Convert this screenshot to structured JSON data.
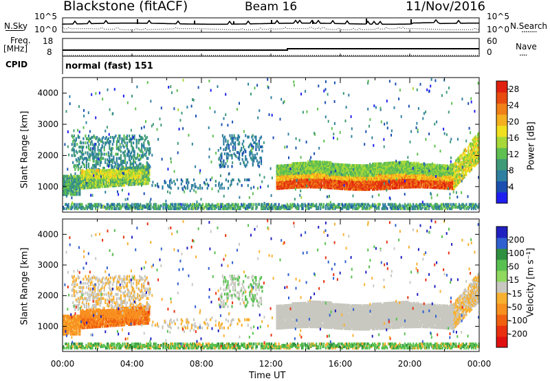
{
  "header": {
    "title": "Blackstone (fitACF)",
    "beam": "Beam 16",
    "date": "11/Nov/2016"
  },
  "noise_panel": {
    "left_label": "N.Sky",
    "right_label": "N.Search",
    "right_marker": "........",
    "left_ticks": [
      "10^5",
      "10^0"
    ],
    "right_ticks": [
      "10^5",
      "10^0"
    ]
  },
  "freq_panel": {
    "left_label": "Freq.",
    "unit": "[MHz]",
    "right_label": "Nave",
    "right_marker": "....",
    "left_ticks": [
      "18",
      "8"
    ],
    "right_ticks": [
      "60",
      "0"
    ]
  },
  "cpid": {
    "label": "CPID",
    "value": "normal (fast) 151"
  },
  "chart_data": [
    {
      "type": "heatmap",
      "name": "power",
      "ylabel": "Slant Range [km]",
      "xlabel": "Time UT",
      "y_ticks": [
        "1000",
        "2000",
        "3000",
        "4000"
      ],
      "x_ticks": [
        "00:00",
        "04:00",
        "08:00",
        "12:00",
        "16:00",
        "20:00",
        "00:00"
      ],
      "ylim": [
        180,
        4500
      ],
      "colorbar": {
        "label": "Power [dB]",
        "ticks": [
          "4",
          "8",
          "12",
          "16",
          "20",
          "24",
          "28"
        ],
        "range": [
          0,
          30
        ],
        "colors": [
          "#1e1ef0",
          "#1a4fb0",
          "#2f7fa0",
          "#3f9a78",
          "#5fbf50",
          "#a8d838",
          "#f0e020",
          "#f4b020",
          "#f08018",
          "#e84c10",
          "#e02010"
        ]
      }
    },
    {
      "type": "heatmap",
      "name": "velocity",
      "ylabel": "Slant Range [km]",
      "xlabel": "Time UT",
      "y_ticks": [
        "1000",
        "2000",
        "3000",
        "4000"
      ],
      "x_ticks": [
        "00:00",
        "04:00",
        "08:00",
        "12:00",
        "16:00",
        "20:00",
        "00:00"
      ],
      "ylim": [
        180,
        4500
      ],
      "colorbar": {
        "label": "Velocity [m s⁻¹]",
        "ticks": [
          "200",
          "100",
          "50",
          "15",
          "-15",
          "-50",
          "-100",
          "-200"
        ],
        "colors": [
          "#2020c0",
          "#3060d0",
          "#2f8f40",
          "#58c050",
          "#90d860",
          "#c8c8c0",
          "#f8b030",
          "#f89020",
          "#f06010",
          "#e83010",
          "#e01010"
        ]
      }
    }
  ]
}
